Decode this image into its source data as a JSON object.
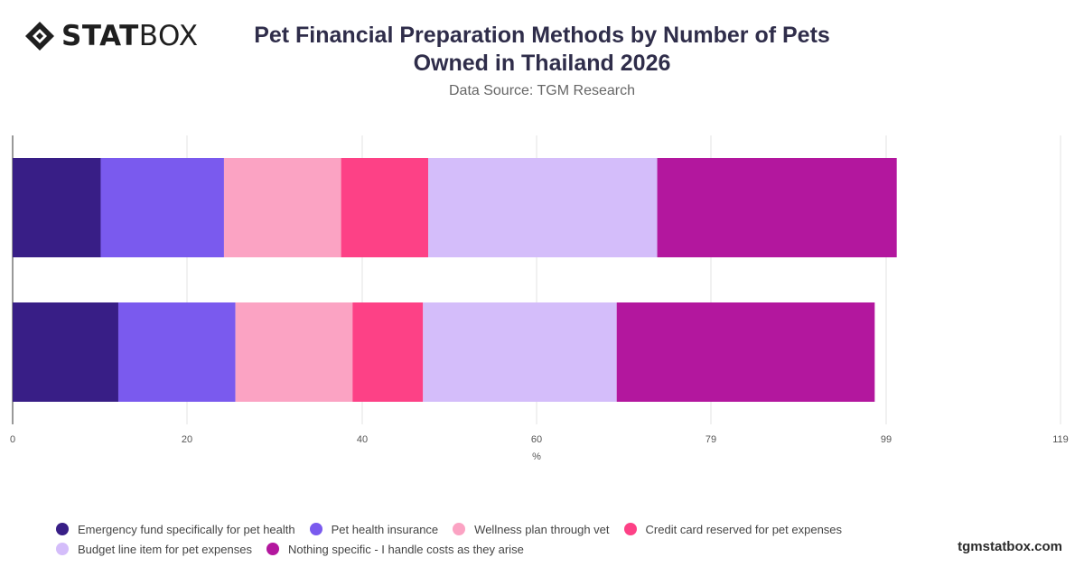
{
  "brand": {
    "logo_bold": "STAT",
    "logo_regular": "BOX",
    "footer": "tgmstatbox.com"
  },
  "header": {
    "title_line1": "Pet Financial Preparation Methods by Number of Pets",
    "title_line2": "Owned in Thailand 2026",
    "subtitle": "Data Source: TGM Research"
  },
  "chart_data": {
    "type": "bar",
    "orientation": "horizontal",
    "stacked": true,
    "title": "Pet Financial Preparation Methods by Number of Pets Owned in Thailand 2026",
    "subtitle": "Data Source: TGM Research",
    "xlabel": "%",
    "ylabel": "",
    "xlim": [
      0,
      119
    ],
    "x_ticks": [
      "0",
      "20",
      "40",
      "60",
      "79",
      "99",
      "119"
    ],
    "x_tick_values": [
      0,
      19.8,
      39.7,
      59.5,
      79.3,
      99.2,
      119
    ],
    "categories": [
      "",
      ""
    ],
    "grid": true,
    "legend_position": "bottom",
    "series": [
      {
        "name": "Emergency fund specifically for pet health",
        "color": "#381e86",
        "values": [
          10,
          12
        ]
      },
      {
        "name": "Pet health insurance",
        "color": "#7a5aee",
        "values": [
          14,
          13.3
        ]
      },
      {
        "name": "Wellness plan through vet",
        "color": "#fba3c3",
        "values": [
          13.3,
          13.3
        ]
      },
      {
        "name": "Credit card reserved for pet expenses",
        "color": "#fd4186",
        "values": [
          9.9,
          8
        ]
      },
      {
        "name": "Budget line item for pet expenses",
        "color": "#d4bdfa",
        "values": [
          26,
          22
        ]
      },
      {
        "name": "Nothing specific - I handle costs as they arise",
        "color": "#b3179e",
        "values": [
          27.2,
          29.3
        ]
      }
    ]
  }
}
